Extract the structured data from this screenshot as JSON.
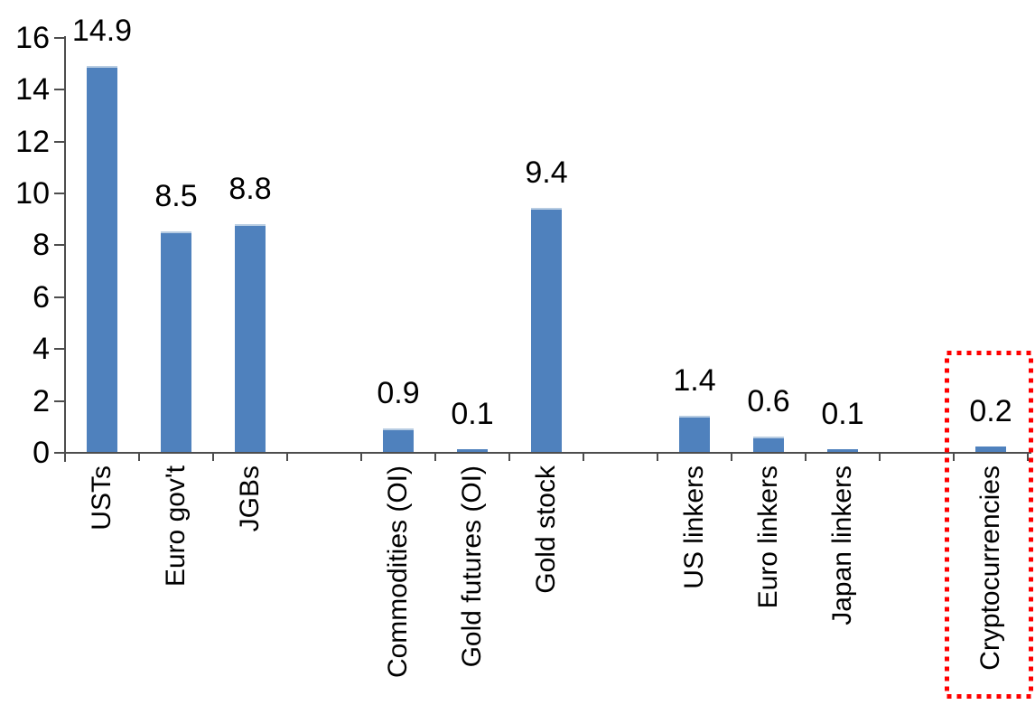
{
  "chart_data": {
    "type": "bar",
    "title": "",
    "xlabel": "",
    "ylabel": "",
    "categories": [
      "USTs",
      "Euro gov't",
      "JGBs",
      "Commodities (OI)",
      "Gold futures (OI)",
      "Gold stock",
      "US linkers",
      "Euro linkers",
      "Japan linkers",
      "Cryptocurrencies"
    ],
    "values": [
      14.9,
      8.5,
      8.8,
      0.9,
      0.1,
      9.4,
      1.4,
      0.6,
      0.1,
      0.2
    ],
    "data_labels": [
      "14.9",
      "8.5",
      "8.8",
      "0.9",
      "0.1",
      "9.4",
      "1.4",
      "0.6",
      "0.1",
      "0.2"
    ],
    "groups": [
      [
        "USTs",
        "Euro gov't",
        "JGBs"
      ],
      [
        "Commodities (OI)",
        "Gold futures (OI)",
        "Gold stock"
      ],
      [
        "US linkers",
        "Euro linkers",
        "Japan linkers"
      ],
      [
        "Cryptocurrencies"
      ]
    ],
    "slot_indices": [
      0,
      1,
      2,
      4,
      5,
      6,
      8,
      9,
      10,
      12
    ],
    "num_slots": 13,
    "ylim": [
      0,
      16
    ],
    "y_ticks": [
      0,
      2,
      4,
      6,
      8,
      10,
      12,
      14,
      16
    ],
    "grid": false,
    "legend": "none",
    "category_label_rotation": -90,
    "colors": {
      "bar": "#4f81bd",
      "bar_top_edge": "#b7cce2",
      "axis": "#4d4d4d",
      "text": "#000000",
      "background": "#ffffff",
      "highlight": "#ff0000"
    },
    "highlight": {
      "target": "Cryptocurrencies",
      "target_value_label": "0.2",
      "shape": "dotted-rectangle",
      "color": "#ff0000"
    }
  }
}
